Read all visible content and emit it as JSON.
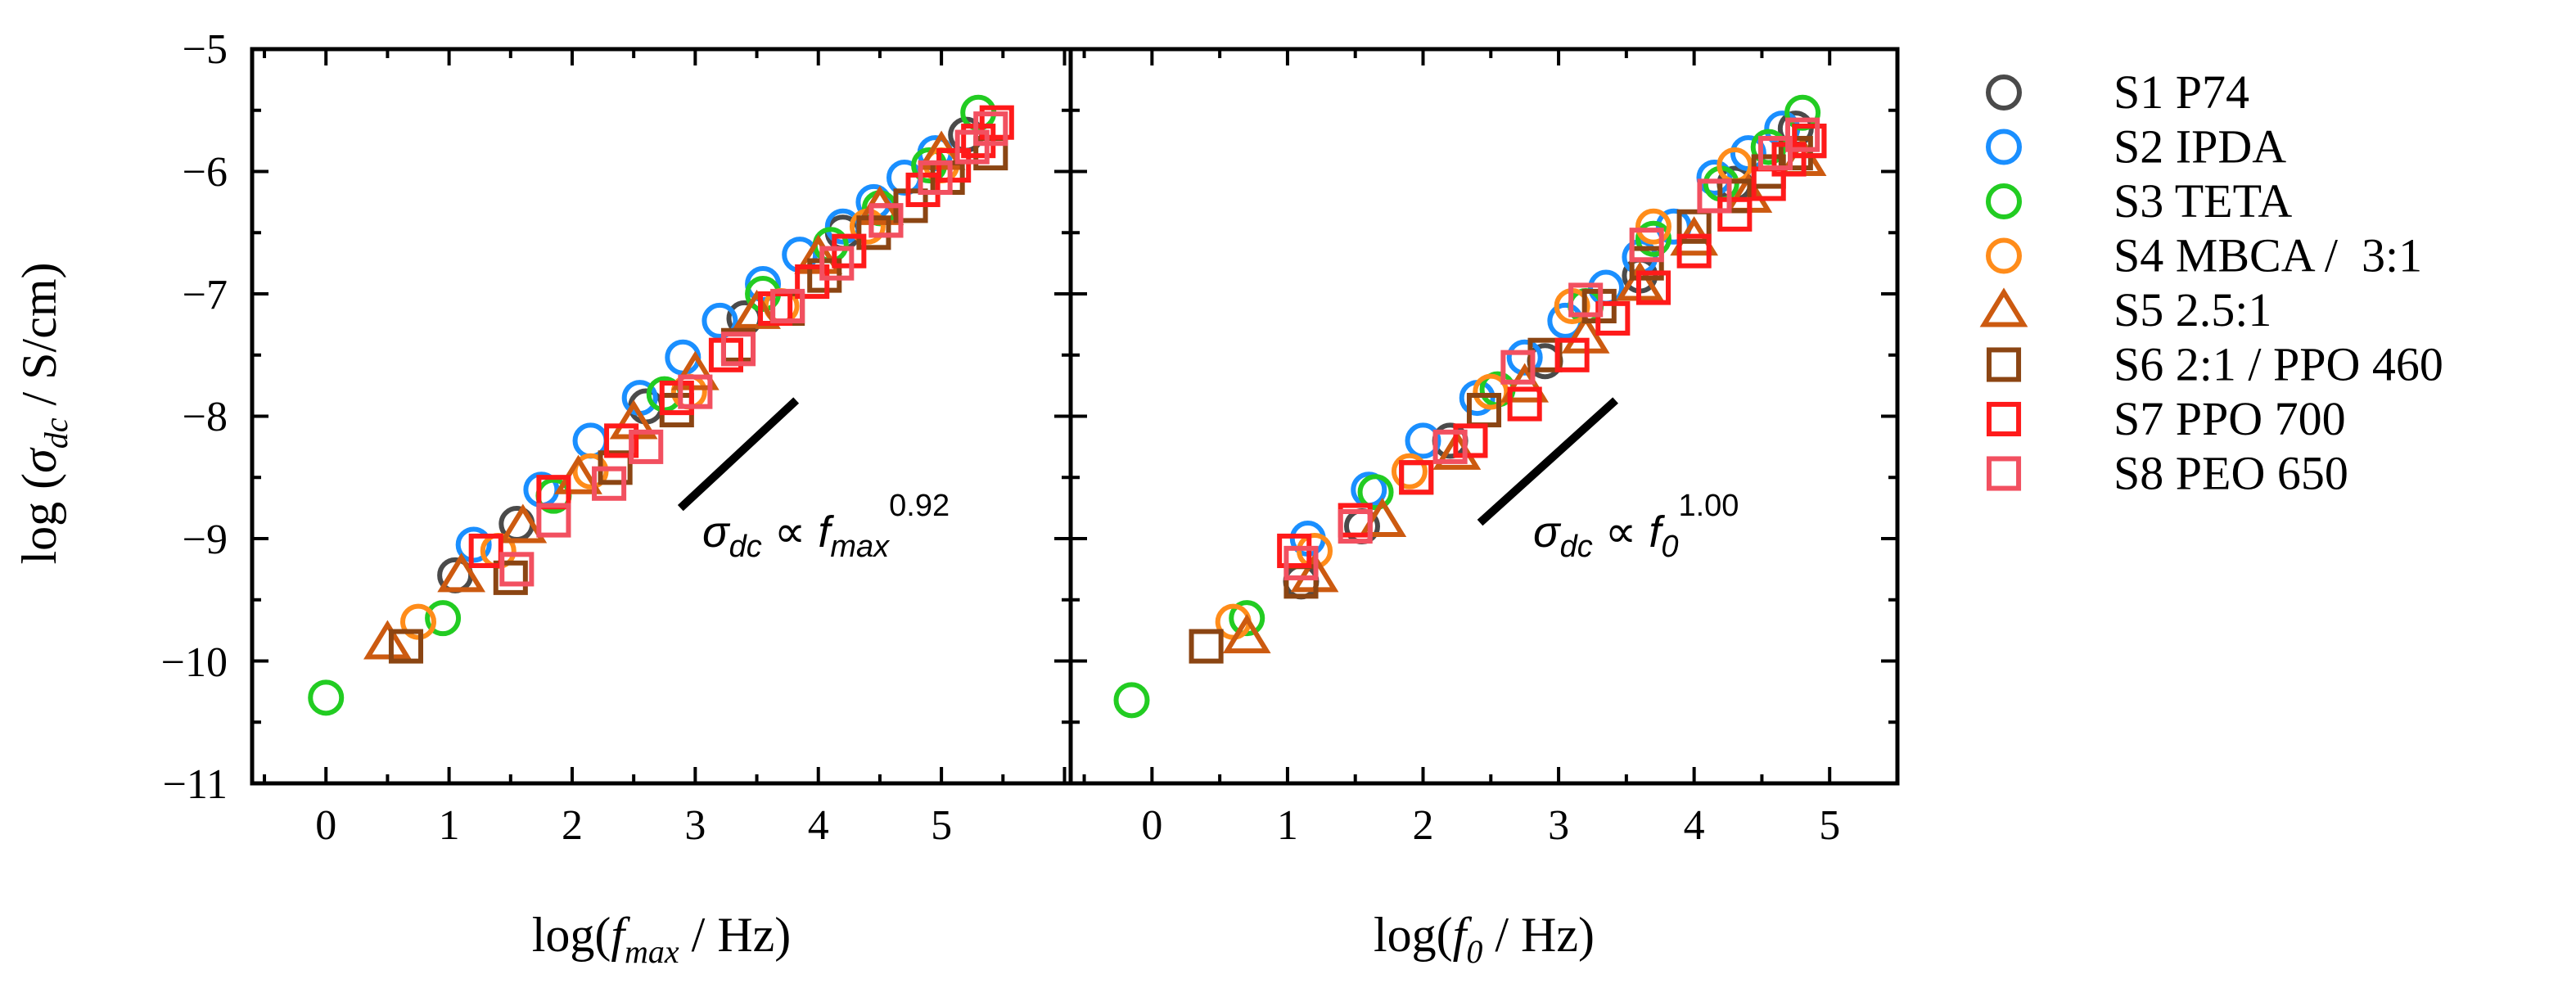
{
  "ylabel": {
    "prefix": "log (",
    "sigma": "σ",
    "sub": "dc",
    "suffix": " / S/cm)"
  },
  "x_ticks": [
    "0",
    "1",
    "2",
    "3",
    "4",
    "5"
  ],
  "y_ticks": [
    "−5",
    "−6",
    "−7",
    "−8",
    "−9",
    "−10",
    "−11"
  ],
  "colors": {
    "S1": "#4a4a4a",
    "S2": "#1a8fff",
    "S3": "#22cc22",
    "S4": "#ff8c1a",
    "S5": "#cc5a10",
    "S6": "#8b4513",
    "S7": "#ff1a1a",
    "S8": "#f25060"
  },
  "legend": [
    {
      "key": "S1",
      "label": "S1 P74",
      "marker": "circle"
    },
    {
      "key": "S2",
      "label": "S2 IPDA",
      "marker": "circle"
    },
    {
      "key": "S3",
      "label": "S3 TETA",
      "marker": "circle"
    },
    {
      "key": "S4",
      "label": "S4 MBCA /  3:1",
      "marker": "circle"
    },
    {
      "key": "S5",
      "label": "S5 2.5:1",
      "marker": "triangle"
    },
    {
      "key": "S6",
      "label": "S6 2:1 / PPO 460",
      "marker": "square"
    },
    {
      "key": "S7",
      "label": "S7 PPO 700",
      "marker": "square"
    },
    {
      "key": "S8",
      "label": "S8 PEO 650",
      "marker": "square"
    }
  ],
  "chart_data": [
    {
      "type": "scatter",
      "xlabel": {
        "prefix": "log(",
        "var": "f",
        "sub": "max",
        "suffix": " / Hz)"
      },
      "ylabel": "log (σdc / S/cm)",
      "xlim": [
        -0.6,
        6.05
      ],
      "ylim": [
        -11,
        -5
      ],
      "annotation": {
        "sigma": "σ",
        "sigma_sub": "dc",
        "prop": " ∝ ",
        "var": "f",
        "var_sub": "max",
        "exp": "0.92"
      },
      "guide_line": {
        "x": [
          2.88,
          3.82
        ],
        "y": [
          -8.75,
          -7.87
        ]
      },
      "series": [
        {
          "name": "S1 P74",
          "key": "S1",
          "marker": "circle",
          "x": [
            1.05,
            1.55,
            2.6,
            3.4,
            4.2,
            5.2
          ],
          "y": [
            -9.3,
            -8.88,
            -7.92,
            -7.2,
            -6.5,
            -5.7
          ]
        },
        {
          "name": "S2 IPDA",
          "key": "S2",
          "marker": "circle",
          "x": [
            1.2,
            1.75,
            2.15,
            2.55,
            2.9,
            3.2,
            3.55,
            3.85,
            4.2,
            4.45,
            4.7,
            4.95
          ],
          "y": [
            -9.05,
            -8.6,
            -8.2,
            -7.85,
            -7.52,
            -7.22,
            -6.92,
            -6.68,
            -6.45,
            -6.25,
            -6.05,
            -5.85
          ]
        },
        {
          "name": "S3 TETA",
          "key": "S3",
          "marker": "circle",
          "x": [
            0.0,
            0.95,
            1.85,
            2.75,
            3.55,
            4.1,
            4.5,
            4.9,
            5.3
          ],
          "y": [
            -10.3,
            -9.65,
            -8.65,
            -7.82,
            -7.0,
            -6.6,
            -6.3,
            -5.95,
            -5.52
          ]
        },
        {
          "name": "S4 MBCA / 3:1",
          "key": "S4",
          "marker": "circle",
          "x": [
            0.75,
            1.4,
            2.15,
            2.95,
            3.7,
            4.4,
            5.0
          ],
          "y": [
            -9.68,
            -9.1,
            -8.45,
            -7.8,
            -7.1,
            -6.45,
            -5.95
          ]
        },
        {
          "name": "S5 2.5:1",
          "key": "S5",
          "marker": "triangle",
          "x": [
            0.5,
            1.1,
            1.6,
            2.05,
            2.5,
            3.0,
            3.5,
            4.0,
            4.5,
            5.0
          ],
          "y": [
            -9.85,
            -9.3,
            -8.9,
            -8.5,
            -8.05,
            -7.65,
            -7.15,
            -6.7,
            -6.3,
            -5.85
          ]
        },
        {
          "name": "S6 2:1 / PPO 460",
          "key": "S6",
          "marker": "square",
          "x": [
            0.65,
            1.5,
            2.35,
            2.85,
            3.35,
            3.75,
            4.05,
            4.45,
            4.75,
            5.05,
            5.4
          ],
          "y": [
            -9.88,
            -9.32,
            -8.42,
            -7.95,
            -7.42,
            -7.12,
            -6.85,
            -6.5,
            -6.28,
            -6.05,
            -5.85
          ]
        },
        {
          "name": "S7 PPO 700",
          "key": "S7",
          "marker": "square",
          "x": [
            1.3,
            1.85,
            2.4,
            2.85,
            3.25,
            3.65,
            3.95,
            4.25,
            4.55,
            4.85,
            5.1,
            5.3,
            5.45
          ],
          "y": [
            -9.1,
            -8.62,
            -8.2,
            -7.85,
            -7.5,
            -7.12,
            -6.9,
            -6.65,
            -6.4,
            -6.15,
            -5.95,
            -5.75,
            -5.6
          ]
        },
        {
          "name": "S8 PEO 650",
          "key": "S8",
          "marker": "square",
          "x": [
            1.55,
            1.85,
            2.3,
            2.6,
            3.0,
            3.35,
            3.75,
            4.15,
            4.55,
            4.95,
            5.25,
            5.4
          ],
          "y": [
            -9.25,
            -8.85,
            -8.55,
            -8.25,
            -7.8,
            -7.45,
            -7.1,
            -6.75,
            -6.4,
            -6.05,
            -5.8,
            -5.65
          ]
        }
      ]
    },
    {
      "type": "scatter",
      "xlabel": {
        "prefix": "log(",
        "var": "f",
        "sub": "0",
        "suffix": " / Hz)"
      },
      "ylabel": "log (σdc / S/cm)",
      "xlim": [
        -0.6,
        5.5
      ],
      "ylim": [
        -11,
        -5
      ],
      "annotation": {
        "sigma": "σ",
        "sigma_sub": "dc",
        "prop": " ∝ ",
        "var": "f",
        "var_sub": "0",
        "exp": "1.00"
      },
      "guide_line": {
        "x": [
          2.42,
          3.42
        ],
        "y": [
          -8.87,
          -7.87
        ]
      },
      "series": [
        {
          "name": "S1 P74",
          "key": "S1",
          "marker": "circle",
          "x": [
            1.1,
            1.55,
            2.2,
            2.9,
            3.6,
            4.3,
            4.75
          ],
          "y": [
            -9.35,
            -8.9,
            -8.2,
            -7.55,
            -6.85,
            -6.1,
            -5.65
          ]
        },
        {
          "name": "S2 IPDA",
          "key": "S2",
          "marker": "circle",
          "x": [
            1.15,
            1.6,
            2.0,
            2.4,
            2.75,
            3.05,
            3.35,
            3.6,
            3.85,
            4.15,
            4.4,
            4.65
          ],
          "y": [
            -9.0,
            -8.6,
            -8.2,
            -7.85,
            -7.52,
            -7.22,
            -6.95,
            -6.7,
            -6.45,
            -6.05,
            -5.85,
            -5.65
          ]
        },
        {
          "name": "S3 TETA",
          "key": "S3",
          "marker": "circle",
          "x": [
            -0.15,
            0.7,
            1.65,
            2.55,
            3.2,
            3.7,
            4.2,
            4.55,
            4.8
          ],
          "y": [
            -10.32,
            -9.65,
            -8.62,
            -7.78,
            -7.1,
            -6.55,
            -6.1,
            -5.8,
            -5.52
          ]
        },
        {
          "name": "S4 MBCA / 3:1",
          "key": "S4",
          "marker": "circle",
          "x": [
            0.6,
            1.2,
            1.9,
            2.5,
            3.1,
            3.7,
            4.3
          ],
          "y": [
            -9.68,
            -9.1,
            -8.45,
            -7.8,
            -7.1,
            -6.45,
            -5.95
          ]
        },
        {
          "name": "S5 2.5:1",
          "key": "S5",
          "marker": "triangle",
          "x": [
            0.7,
            1.2,
            1.7,
            2.25,
            2.75,
            3.2,
            3.6,
            4.0,
            4.4,
            4.8
          ],
          "y": [
            -9.8,
            -9.3,
            -8.85,
            -8.3,
            -7.75,
            -7.35,
            -6.92,
            -6.55,
            -6.2,
            -5.9
          ]
        },
        {
          "name": "S6 2:1 / PPO 460",
          "key": "S6",
          "marker": "square",
          "x": [
            0.4,
            1.1,
            1.95,
            2.45,
            2.9,
            3.3,
            3.65,
            4.0,
            4.3,
            4.55,
            4.75,
            4.85
          ],
          "y": [
            -9.88,
            -9.35,
            -8.5,
            -7.95,
            -7.5,
            -7.1,
            -6.75,
            -6.45,
            -6.2,
            -6.0,
            -5.85,
            -5.75
          ]
        },
        {
          "name": "S7 PPO 700",
          "key": "S7",
          "marker": "square",
          "x": [
            1.05,
            1.5,
            1.95,
            2.35,
            2.75,
            3.1,
            3.4,
            3.7,
            4.0,
            4.3,
            4.55,
            4.7,
            4.85
          ],
          "y": [
            -9.1,
            -8.85,
            -8.5,
            -8.2,
            -7.9,
            -7.5,
            -7.2,
            -6.95,
            -6.65,
            -6.35,
            -6.1,
            -5.9,
            -5.75
          ]
        },
        {
          "name": "S8 PEO 650",
          "key": "S8",
          "marker": "square",
          "x": [
            1.1,
            1.5,
            2.2,
            2.7,
            3.2,
            3.65,
            4.15,
            4.6,
            4.8
          ],
          "y": [
            -9.2,
            -8.9,
            -8.25,
            -7.6,
            -7.05,
            -6.6,
            -6.2,
            -5.85,
            -5.7
          ]
        }
      ]
    }
  ]
}
